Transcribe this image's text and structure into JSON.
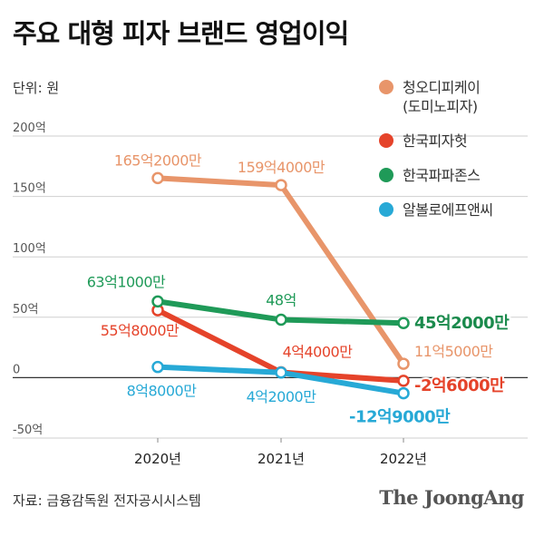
{
  "chart_data": {
    "type": "line",
    "title": "주요 대형 피자 브랜드 영업이익",
    "unit_label": "단위: 원",
    "source": "자료: 금융감독원 전자공시시스템",
    "brand": "The JoongAng",
    "categories": [
      "2020년",
      "2021년",
      "2022년"
    ],
    "ylim": [
      -50,
      200
    ],
    "yticks": [
      200,
      150,
      100,
      50,
      0,
      -50
    ],
    "ytick_labels": [
      "200억",
      "150억",
      "100억",
      "50억",
      "0",
      "-50억"
    ],
    "grid": true,
    "legend_position": "top-right",
    "series": [
      {
        "name": "청오디피케이\n(도미노피자)",
        "color": "#e8956a",
        "values": [
          165.2,
          159.4,
          11.5
        ],
        "labels": [
          "165억2000만",
          "159억4000만",
          "11억5000만"
        ]
      },
      {
        "name": "한국피자헛",
        "color": "#e5432a",
        "values": [
          55.8,
          4.4,
          -2.6
        ],
        "labels": [
          "55억8000만",
          "4억4000만",
          "-2억6000만"
        ]
      },
      {
        "name": "한국파파존스",
        "color": "#1f9a58",
        "values": [
          63.1,
          48,
          45.2
        ],
        "labels": [
          "63억1000만",
          "48억",
          "45억2000만"
        ]
      },
      {
        "name": "알볼로에프앤씨",
        "color": "#27a9d6",
        "values": [
          8.8,
          4.2,
          -12.9
        ],
        "labels": [
          "8억8000만",
          "4억2000만",
          "-12억9000만"
        ]
      }
    ]
  }
}
